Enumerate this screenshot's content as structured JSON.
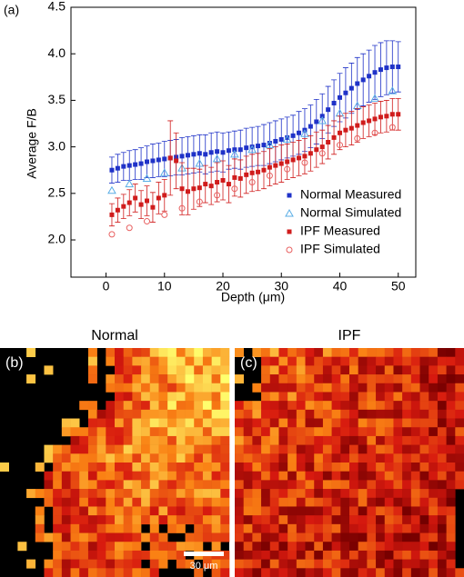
{
  "chart_data": {
    "type": "scatter",
    "panel_label": "(a)",
    "x_label": "Depth (μm)",
    "y_label": "Average F/B",
    "xlim": [
      -6,
      53
    ],
    "xticks": [
      0,
      10,
      20,
      30,
      40,
      50
    ],
    "ylim": [
      1.6,
      4.5
    ],
    "yticks": [
      {
        "value": 2,
        "label": "2.0"
      },
      2.5,
      {
        "value": 3,
        "label": "3.0"
      },
      3.5,
      {
        "value": 4,
        "label": "4.0"
      },
      4.5
    ],
    "legend": "lower right",
    "series": [
      {
        "name": "Normal Measured",
        "color": "#1f32c8",
        "marker": "square",
        "x": [
          1,
          2,
          3,
          4,
          5,
          6,
          7,
          8,
          9,
          10,
          11,
          12,
          13,
          14,
          15,
          16,
          17,
          18,
          19,
          20,
          21,
          22,
          23,
          24,
          25,
          26,
          27,
          28,
          29,
          30,
          31,
          32,
          33,
          34,
          35,
          36,
          37,
          38,
          39,
          40,
          41,
          42,
          43,
          44,
          45,
          46,
          47,
          48,
          49,
          50
        ],
        "values": [
          2.75,
          2.77,
          2.79,
          2.8,
          2.81,
          2.82,
          2.84,
          2.85,
          2.86,
          2.87,
          2.88,
          2.89,
          2.9,
          2.91,
          2.92,
          2.93,
          2.92,
          2.94,
          2.95,
          2.94,
          2.96,
          2.97,
          2.97,
          2.99,
          3.0,
          3.01,
          3.02,
          3.04,
          3.06,
          3.08,
          3.1,
          3.12,
          3.15,
          3.18,
          3.22,
          3.27,
          3.33,
          3.4,
          3.47,
          3.53,
          3.58,
          3.63,
          3.68,
          3.72,
          3.76,
          3.8,
          3.83,
          3.85,
          3.86,
          3.86
        ],
        "errors": [
          0.14,
          0.15,
          0.15,
          0.16,
          0.16,
          0.17,
          0.17,
          0.18,
          0.18,
          0.19,
          0.19,
          0.19,
          0.2,
          0.2,
          0.2,
          0.2,
          0.21,
          0.21,
          0.21,
          0.21,
          0.2,
          0.2,
          0.21,
          0.21,
          0.21,
          0.21,
          0.22,
          0.22,
          0.22,
          0.22,
          0.22,
          0.22,
          0.23,
          0.23,
          0.23,
          0.24,
          0.24,
          0.25,
          0.25,
          0.26,
          0.27,
          0.27,
          0.28,
          0.28,
          0.28,
          0.29,
          0.29,
          0.29,
          0.28,
          0.27
        ]
      },
      {
        "name": "Normal Simulated",
        "color": "#5aaee6",
        "marker": "triangle-open",
        "x": [
          1,
          4,
          7,
          10,
          13,
          16,
          19,
          22,
          25,
          28,
          31,
          34,
          37,
          40,
          43,
          46,
          49
        ],
        "values": [
          2.53,
          2.6,
          2.66,
          2.72,
          2.77,
          2.82,
          2.87,
          2.92,
          2.97,
          3.02,
          3.08,
          3.14,
          3.28,
          3.36,
          3.44,
          3.52,
          3.6
        ]
      },
      {
        "name": "IPF Measured",
        "color": "#d01c1c",
        "marker": "square",
        "x": [
          1,
          2,
          3,
          4,
          5,
          6,
          7,
          8,
          9,
          10,
          11,
          12,
          13,
          14,
          15,
          16,
          17,
          18,
          19,
          20,
          21,
          22,
          23,
          24,
          25,
          26,
          27,
          28,
          29,
          30,
          31,
          32,
          33,
          34,
          35,
          36,
          37,
          38,
          39,
          40,
          41,
          42,
          43,
          44,
          45,
          46,
          47,
          48,
          49,
          50
        ],
        "values": [
          2.27,
          2.32,
          2.36,
          2.4,
          2.45,
          2.38,
          2.42,
          2.35,
          2.45,
          2.48,
          2.88,
          2.85,
          2.55,
          2.52,
          2.55,
          2.56,
          2.6,
          2.58,
          2.62,
          2.64,
          2.6,
          2.67,
          2.66,
          2.7,
          2.72,
          2.73,
          2.75,
          2.78,
          2.8,
          2.82,
          2.84,
          2.86,
          2.88,
          2.9,
          2.93,
          2.97,
          3.0,
          3.05,
          3.1,
          3.15,
          3.18,
          3.2,
          3.23,
          3.26,
          3.28,
          3.3,
          3.32,
          3.33,
          3.35,
          3.35
        ],
        "errors": [
          0.12,
          0.13,
          0.13,
          0.14,
          0.15,
          0.15,
          0.16,
          0.16,
          0.17,
          0.17,
          0.4,
          0.3,
          0.28,
          0.25,
          0.22,
          0.2,
          0.2,
          0.2,
          0.21,
          0.21,
          0.2,
          0.2,
          0.2,
          0.2,
          0.2,
          0.2,
          0.2,
          0.2,
          0.2,
          0.2,
          0.19,
          0.19,
          0.19,
          0.19,
          0.19,
          0.19,
          0.18,
          0.18,
          0.18,
          0.18,
          0.18,
          0.18,
          0.18,
          0.17,
          0.17,
          0.17,
          0.17,
          0.17,
          0.17,
          0.17
        ]
      },
      {
        "name": "IPF Simulated",
        "color": "#e86060",
        "marker": "circle-open",
        "x": [
          1,
          4,
          7,
          10,
          13,
          16,
          19,
          22,
          25,
          28,
          31,
          34,
          37,
          40,
          43,
          46,
          49
        ],
        "values": [
          2.06,
          2.13,
          2.2,
          2.27,
          2.34,
          2.41,
          2.48,
          2.55,
          2.62,
          2.69,
          2.76,
          2.83,
          2.93,
          3.02,
          3.09,
          3.15,
          3.21
        ]
      }
    ]
  },
  "images": [
    {
      "panel_label": "(b)",
      "title": "Normal",
      "scale_bar": "30 μm"
    },
    {
      "panel_label": "(c)",
      "title": "IPF"
    }
  ]
}
